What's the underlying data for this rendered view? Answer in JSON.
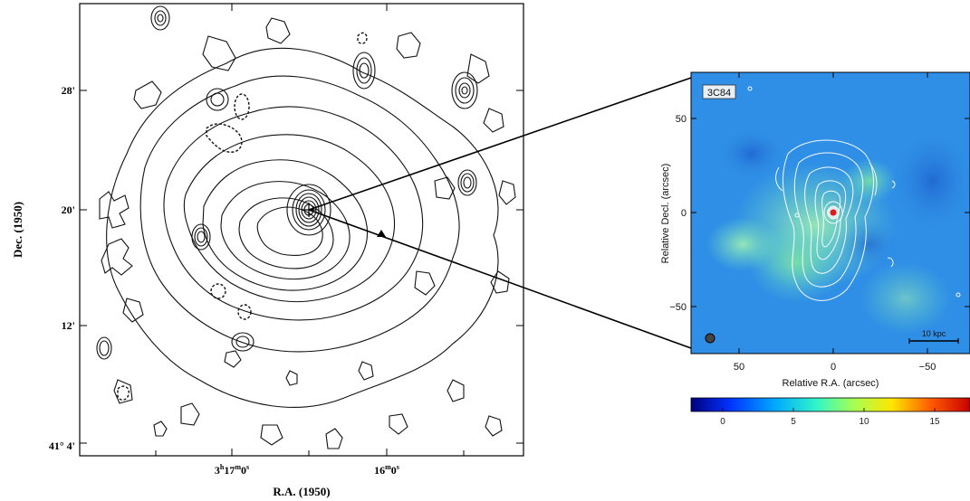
{
  "left_panel": {
    "y_axis_label": "Dec. (1950)",
    "x_axis_label": "R.A. (1950)",
    "y_ticks": [
      "28'",
      "20'",
      "12'",
      "41° 4'"
    ],
    "x_ticks": {
      "t1": {
        "h": "3",
        "hs": "h",
        "m": "17",
        "ms": "m",
        "s": "0",
        "ss": "s"
      },
      "t2": {
        "m": "16",
        "ms": "m",
        "s": "0",
        "ss": "s"
      }
    }
  },
  "right_panel": {
    "source_label": "3C84",
    "y_axis_label": "Relative Decl. (arcsec)",
    "x_axis_label": "Relative R.A. (arcsec)",
    "y_ticks": [
      "50",
      "0",
      "−50"
    ],
    "x_ticks": [
      "50",
      "0",
      "−50"
    ],
    "scale_bar_label": "10 kpc",
    "colorbar_ticks": [
      "0",
      "5",
      "10",
      "15"
    ],
    "colors": {
      "background": "#2f8fe6",
      "colorbar_stops": [
        "#00007f",
        "#0033ff",
        "#00a8ff",
        "#31f5c8",
        "#a4ff55",
        "#ffe600",
        "#ff5a00",
        "#c80000"
      ]
    }
  }
}
